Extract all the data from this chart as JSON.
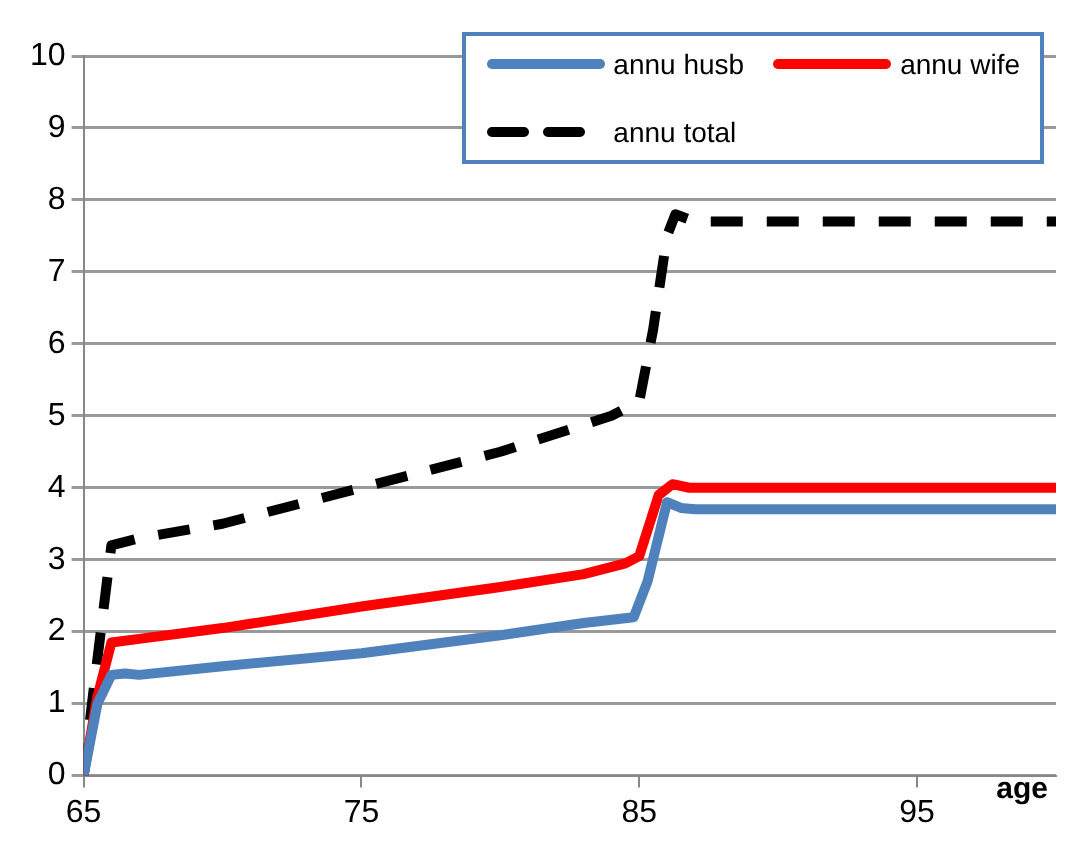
{
  "chart_data": {
    "type": "line",
    "xlabel": "age",
    "xlim": [
      65,
      100
    ],
    "xticks": [
      65,
      75,
      85,
      95
    ],
    "ylim": [
      0,
      10
    ],
    "yticks": [
      0,
      1,
      2,
      3,
      4,
      5,
      6,
      7,
      8,
      9,
      10
    ],
    "grid": "y",
    "legend": "top right",
    "marker": "none",
    "series": [
      {
        "name": "annu husb",
        "color": "#4f81bd",
        "line_style": "solid",
        "x": [
          65,
          65.5,
          66,
          66.5,
          67,
          70,
          75,
          80,
          83,
          84.8,
          85.3,
          86,
          86.5,
          87,
          100
        ],
        "values": [
          0,
          1.0,
          1.4,
          1.42,
          1.4,
          1.52,
          1.7,
          1.95,
          2.12,
          2.2,
          2.7,
          3.8,
          3.72,
          3.7,
          3.7
        ]
      },
      {
        "name": "annu wife",
        "color": "#ff0000",
        "line_style": "solid",
        "x": [
          65,
          65.5,
          66,
          67,
          70,
          75,
          80,
          83,
          84.5,
          85,
          85.7,
          86.2,
          86.8,
          100
        ],
        "values": [
          0,
          1.1,
          1.85,
          1.9,
          2.05,
          2.35,
          2.62,
          2.8,
          2.95,
          3.05,
          3.9,
          4.05,
          4.0,
          4.0
        ]
      },
      {
        "name": "annu total",
        "color": "#000000",
        "line_style": "dashed",
        "x": [
          65,
          65.3,
          66,
          67,
          70,
          75,
          80,
          84,
          85,
          85.5,
          86,
          86.3,
          87,
          100
        ],
        "values": [
          0,
          1.0,
          3.2,
          3.3,
          3.5,
          4.0,
          4.5,
          5.0,
          5.2,
          6.2,
          7.5,
          7.8,
          7.7,
          7.7
        ]
      }
    ]
  }
}
